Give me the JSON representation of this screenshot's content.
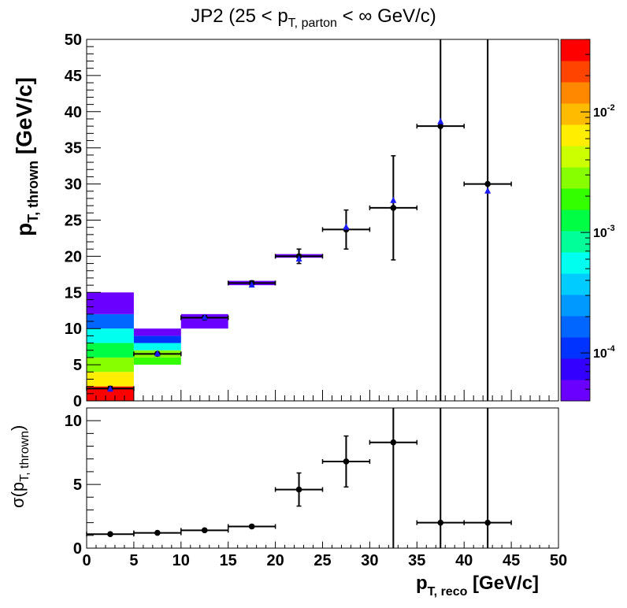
{
  "title": {
    "prefix": "JP2 (25 < p",
    "sub": "T, parton",
    "suffix": " < ∞ GeV/c)"
  },
  "top_panel": {
    "ylabel_main": "p",
    "ylabel_sub": "T, thrown",
    "ylabel_unit": " [GeV/c]",
    "yticks": [
      "0",
      "5",
      "10",
      "15",
      "20",
      "25",
      "30",
      "35",
      "40",
      "45",
      "50"
    ]
  },
  "bottom_panel": {
    "ylabel_prefix": "σ(p",
    "ylabel_sub": "T, thrown",
    "ylabel_suffix": ")",
    "yticks": [
      "0",
      "5",
      "10"
    ]
  },
  "x_axis": {
    "label_main": "p",
    "label_sub": "T, reco",
    "label_unit": " [GeV/c]",
    "ticks": [
      "0",
      "5",
      "10",
      "15",
      "20",
      "25",
      "30",
      "35",
      "40",
      "45",
      "50"
    ]
  },
  "colorbar": {
    "scale": "log",
    "labels": [
      {
        "base": "10",
        "exp": "-2",
        "value": 0.01
      },
      {
        "base": "10",
        "exp": "-3",
        "value": 0.001
      },
      {
        "base": "10",
        "exp": "-4",
        "value": 0.0001
      }
    ],
    "range": [
      4e-05,
      0.04
    ]
  },
  "colors": {
    "mean_marker": "#000000",
    "mpv_marker": "#1a1aff",
    "frame": "#000000"
  },
  "chart_data": [
    {
      "type": "heatmap",
      "panel": "top",
      "xlim": [
        0,
        50
      ],
      "ylim": [
        0,
        50
      ],
      "log_z": true,
      "cells": [
        {
          "x": [
            0,
            5
          ],
          "y": [
            0,
            2
          ],
          "z": 0.04
        },
        {
          "x": [
            0,
            5
          ],
          "y": [
            2,
            4
          ],
          "z": 0.006
        },
        {
          "x": [
            0,
            5
          ],
          "y": [
            4,
            6
          ],
          "z": 0.003
        },
        {
          "x": [
            0,
            5
          ],
          "y": [
            6,
            8
          ],
          "z": 0.0012
        },
        {
          "x": [
            0,
            5
          ],
          "y": [
            8,
            10
          ],
          "z": 0.0006
        },
        {
          "x": [
            0,
            5
          ],
          "y": [
            10,
            12
          ],
          "z": 0.00015
        },
        {
          "x": [
            0,
            5
          ],
          "y": [
            12,
            15
          ],
          "z": 5e-05
        },
        {
          "x": [
            5,
            10
          ],
          "y": [
            5,
            6
          ],
          "z": 0.002
        },
        {
          "x": [
            5,
            10
          ],
          "y": [
            6,
            7
          ],
          "z": 0.003
        },
        {
          "x": [
            5,
            10
          ],
          "y": [
            7,
            8
          ],
          "z": 0.0006
        },
        {
          "x": [
            5,
            10
          ],
          "y": [
            8,
            9
          ],
          "z": 0.00012
        },
        {
          "x": [
            5,
            10
          ],
          "y": [
            9,
            10
          ],
          "z": 5e-05
        },
        {
          "x": [
            10,
            15
          ],
          "y": [
            10,
            12
          ],
          "z": 5e-05
        },
        {
          "x": [
            15,
            20
          ],
          "y": [
            16,
            16.6
          ],
          "z": 5e-05
        },
        {
          "x": [
            20,
            25
          ],
          "y": [
            19.8,
            20.3
          ],
          "z": 5e-05
        }
      ],
      "mean_points": [
        {
          "x": 2.5,
          "y": 1.7,
          "xerr": 2.5,
          "yerr": 0.3
        },
        {
          "x": 7.5,
          "y": 6.5,
          "xerr": 2.5,
          "yerr": 0.2
        },
        {
          "x": 12.5,
          "y": 11.5,
          "xerr": 2.5,
          "yerr": 0.3
        },
        {
          "x": 17.5,
          "y": 16.3,
          "xerr": 2.5,
          "yerr": 0.3
        },
        {
          "x": 22.5,
          "y": 20.0,
          "xerr": 2.5,
          "yerr": 1.0
        },
        {
          "x": 27.5,
          "y": 23.7,
          "xerr": 2.5,
          "yerr": 2.7
        },
        {
          "x": 32.5,
          "y": 26.7,
          "xerr": 2.5,
          "yerr": 7.2
        },
        {
          "x": 37.5,
          "y": 38.0,
          "xerr": 2.5,
          "yerr": 40
        },
        {
          "x": 42.5,
          "y": 30.0,
          "xerr": 2.5,
          "yerr": 40
        }
      ],
      "mpv_points": [
        {
          "x": 2.5,
          "y": 1.6
        },
        {
          "x": 7.5,
          "y": 6.5
        },
        {
          "x": 12.5,
          "y": 11.5
        },
        {
          "x": 17.5,
          "y": 16.0
        },
        {
          "x": 22.5,
          "y": 19.6
        },
        {
          "x": 27.5,
          "y": 24.0
        },
        {
          "x": 32.5,
          "y": 27.7
        },
        {
          "x": 37.5,
          "y": 38.6
        },
        {
          "x": 42.5,
          "y": 29.0
        }
      ]
    },
    {
      "type": "scatter",
      "panel": "bottom",
      "xlim": [
        0,
        50
      ],
      "ylim": [
        0,
        11
      ],
      "points": [
        {
          "x": 2.5,
          "y": 1.1,
          "xerr": 2.5,
          "yerr": 0.05
        },
        {
          "x": 7.5,
          "y": 1.2,
          "xerr": 2.5,
          "yerr": 0.05
        },
        {
          "x": 12.5,
          "y": 1.4,
          "xerr": 2.5,
          "yerr": 0.05
        },
        {
          "x": 17.5,
          "y": 1.7,
          "xerr": 2.5,
          "yerr": 0.1
        },
        {
          "x": 22.5,
          "y": 4.6,
          "xerr": 2.5,
          "yerr": 1.3
        },
        {
          "x": 27.5,
          "y": 6.8,
          "xerr": 2.5,
          "yerr": 2.0
        },
        {
          "x": 32.5,
          "y": 8.3,
          "xerr": 2.5,
          "yerr": 10
        },
        {
          "x": 37.5,
          "y": 2.0,
          "xerr": 2.5,
          "yerr": 10
        },
        {
          "x": 42.5,
          "y": 2.0,
          "xerr": 2.5,
          "yerr": 10
        }
      ]
    }
  ]
}
